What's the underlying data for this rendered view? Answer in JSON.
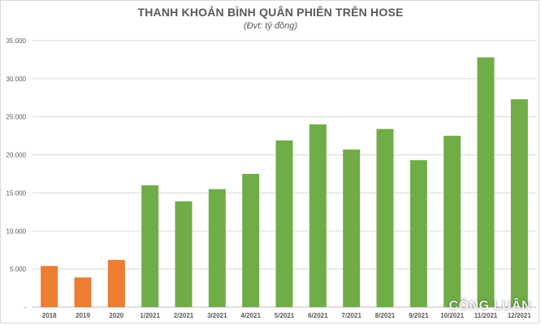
{
  "chart_data": {
    "type": "bar",
    "title": "THANH KHOẢN BÌNH QUÂN PHIÊN TRÊN HOSE",
    "subtitle": "(Đvt: tỷ đồng)",
    "categories": [
      "2018",
      "2019",
      "2020",
      "1/2021",
      "2/2021",
      "3/2021",
      "4/2021",
      "5/2021",
      "6/2021",
      "7/2021",
      "8/2021",
      "9/2021",
      "10/2021",
      "11/2021",
      "12/2021"
    ],
    "values": [
      5400,
      3900,
      6200,
      16000,
      13900,
      15500,
      17500,
      21900,
      24000,
      20700,
      23400,
      19300,
      22500,
      32800,
      27300
    ],
    "colors": [
      "#ed7d31",
      "#ed7d31",
      "#ed7d31",
      "#70ad47",
      "#70ad47",
      "#70ad47",
      "#70ad47",
      "#70ad47",
      "#70ad47",
      "#70ad47",
      "#70ad47",
      "#70ad47",
      "#70ad47",
      "#70ad47",
      "#70ad47"
    ],
    "ylim": [
      0,
      35000
    ],
    "yticks": [
      0,
      5000,
      10000,
      15000,
      20000,
      25000,
      30000,
      35000
    ],
    "ytick_labels": [
      "-",
      "5.000",
      "10.000",
      "15.000",
      "20.000",
      "25.000",
      "30.000",
      "35.000"
    ],
    "xlabel": "",
    "ylabel": "",
    "grid": true
  },
  "watermark": "CÔNG LUẬN",
  "colors": {
    "grid": "#d9d9d9",
    "axis": "#bfbfbf",
    "text": "#595959"
  }
}
